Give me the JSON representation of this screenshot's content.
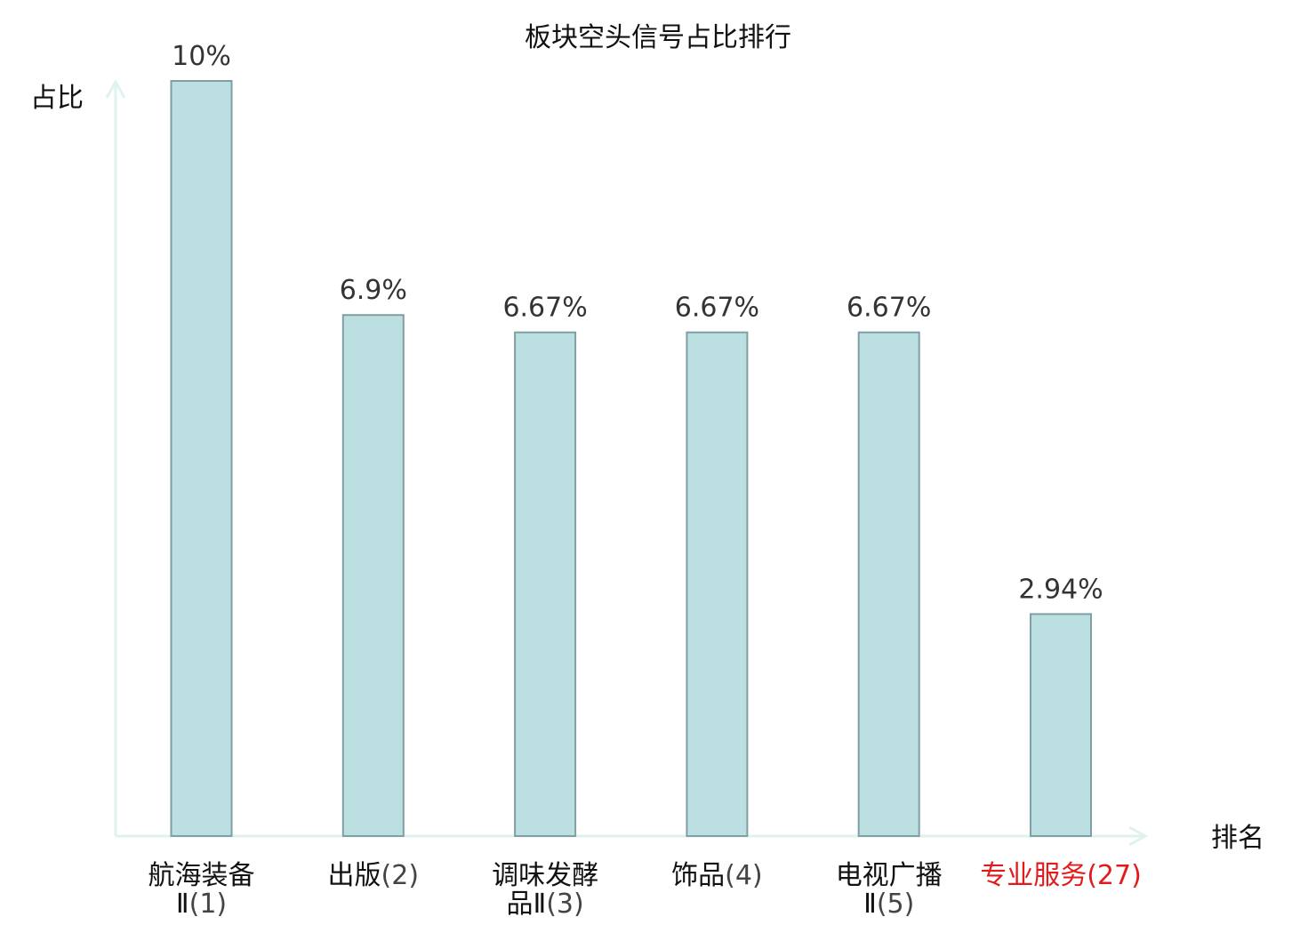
{
  "chart_data": {
    "type": "bar",
    "title": "板块空头信号占比排行",
    "ylabel": "占比",
    "xlabel": "排名",
    "ylim": [
      0,
      10
    ],
    "grid": false,
    "categories": [
      {
        "name_lines": [
          "航海装备",
          "Ⅱ"
        ],
        "rank": "(1)",
        "highlight": false
      },
      {
        "name_lines": [
          "出版"
        ],
        "rank": "(2)",
        "highlight": false
      },
      {
        "name_lines": [
          "调味发酵",
          "品Ⅱ"
        ],
        "rank": "(3)",
        "highlight": false
      },
      {
        "name_lines": [
          "饰品"
        ],
        "rank": "(4)",
        "highlight": false
      },
      {
        "name_lines": [
          "电视广播",
          "Ⅱ"
        ],
        "rank": "(5)",
        "highlight": false
      },
      {
        "name_lines": [
          "专业服务"
        ],
        "rank": "(27)",
        "highlight": true
      }
    ],
    "values": [
      10,
      6.9,
      6.67,
      6.67,
      6.67,
      2.94
    ],
    "value_labels": [
      "10%",
      "6.9%",
      "6.67%",
      "6.67%",
      "6.67%",
      "2.94%"
    ]
  },
  "colors": {
    "bar_fill": "#bce0e2",
    "bar_stroke": "#7f9fa3",
    "axis": "#e0f2ef",
    "highlight": "#e31a1c"
  }
}
